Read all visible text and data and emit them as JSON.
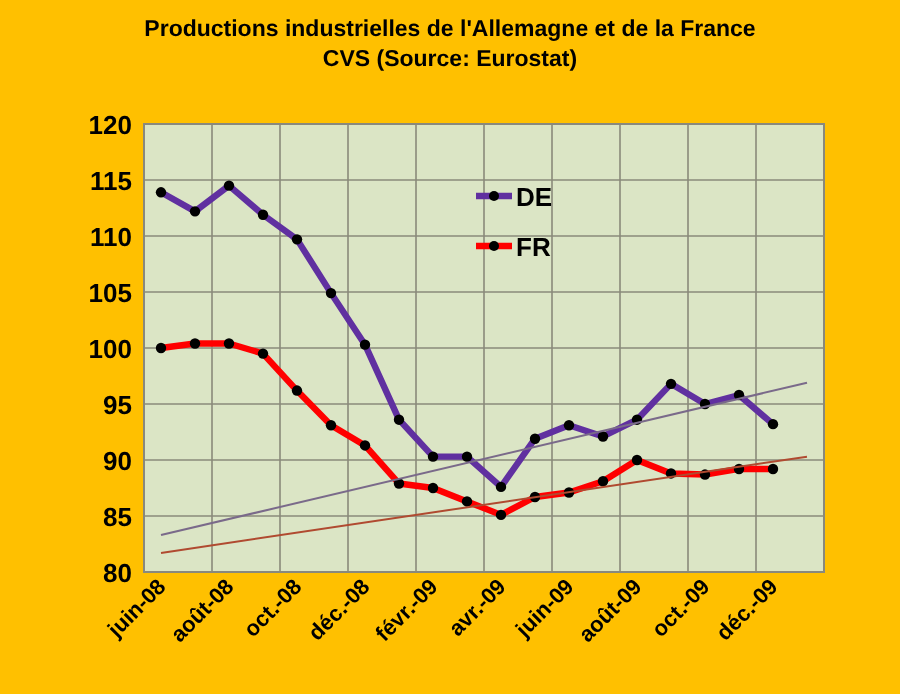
{
  "chart_data": {
    "type": "line",
    "title": "Productions industrielles de l'Allemagne et de la France",
    "subtitle": "CVS (Source: Eurostat)",
    "categories": [
      "juin-08",
      null,
      "août-08",
      null,
      "oct.-08",
      null,
      "déc.-08",
      null,
      "févr.-09",
      null,
      "avr.-09",
      null,
      "juin-09",
      null,
      "août-09",
      null,
      "oct.-09",
      null,
      "déc.-09",
      null
    ],
    "series": [
      {
        "name": "DE",
        "color": "#6030a0",
        "values": [
          113.9,
          112.2,
          114.5,
          111.9,
          109.7,
          104.9,
          100.3,
          93.6,
          90.3,
          90.3,
          87.6,
          91.9,
          93.1,
          92.1,
          93.6,
          96.8,
          95.0,
          95.8,
          93.2,
          null
        ]
      },
      {
        "name": "FR",
        "color": "#ff0000",
        "values": [
          100.0,
          100.4,
          100.4,
          99.5,
          96.2,
          93.1,
          91.3,
          87.9,
          87.5,
          86.3,
          85.1,
          86.7,
          87.1,
          88.1,
          90.0,
          88.8,
          88.7,
          89.2,
          89.2,
          null
        ]
      },
      {
        "color": "#7a6a8a",
        "marker": "none",
        "values": [
          83.3,
          null,
          null,
          null,
          null,
          null,
          null,
          null,
          null,
          null,
          null,
          null,
          null,
          null,
          null,
          null,
          null,
          null,
          null,
          96.9
        ]
      },
      {
        "color": "#b04a30",
        "marker": "none",
        "values": [
          81.7,
          null,
          null,
          null,
          null,
          null,
          null,
          null,
          null,
          null,
          null,
          null,
          null,
          null,
          null,
          null,
          null,
          null,
          null,
          90.3
        ]
      }
    ],
    "ylim": [
      80,
      120
    ],
    "yticks": [
      80,
      85,
      90,
      95,
      100,
      105,
      110,
      115,
      120
    ],
    "grid": true,
    "legend": "top",
    "marker": "circle",
    "line_style": "solid"
  }
}
